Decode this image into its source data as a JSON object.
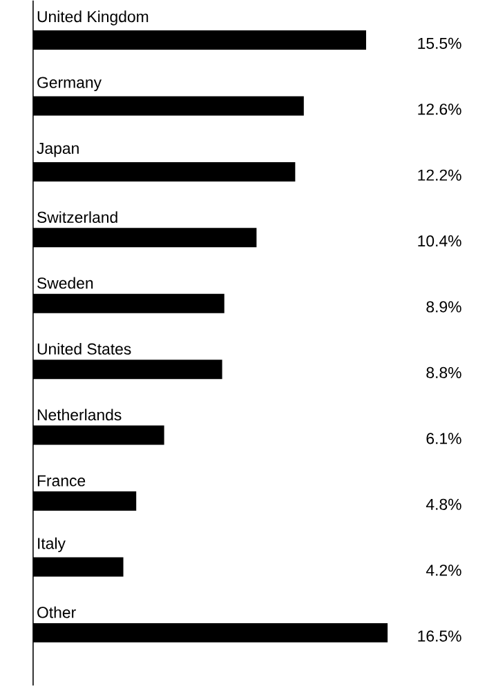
{
  "chart_data": {
    "type": "bar",
    "orientation": "horizontal",
    "categories": [
      "United Kingdom",
      "Germany",
      "Japan",
      "Switzerland",
      "Sweden",
      "United States",
      "Netherlands",
      "France",
      "Italy",
      "Other"
    ],
    "values": [
      15.5,
      12.6,
      12.2,
      10.4,
      8.9,
      8.8,
      6.1,
      4.8,
      4.2,
      16.5
    ],
    "value_labels": [
      "15.5%",
      "12.6%",
      "12.2%",
      "10.4%",
      "8.9%",
      "8.8%",
      "6.1%",
      "4.8%",
      "4.2%",
      "16.5%"
    ],
    "color": "#000000"
  }
}
